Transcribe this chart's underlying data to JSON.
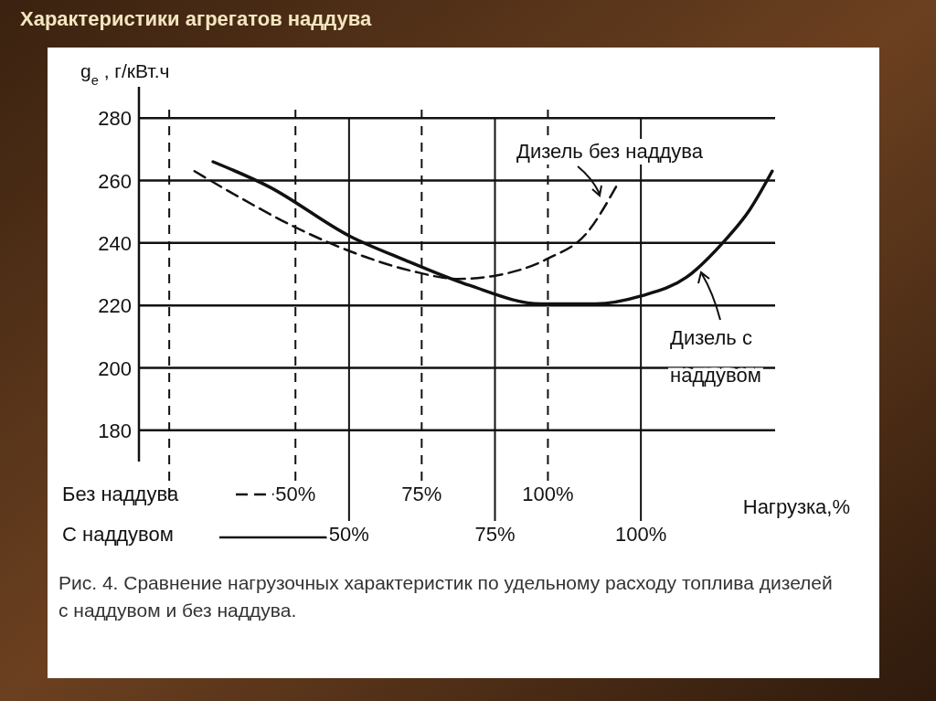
{
  "chart_data": {
    "type": "line",
    "title": "Характеристики агрегатов наддува",
    "ylabel": "g$_{e}$, г/кВт.ч",
    "xlabel": "С наддувом",
    "x2label": "Без наддува",
    "annotations": [
      "Нагрузка,%",
      "Рис. 4. Сравнение нагрузочных характеристик по удельному расходу топлива дизелей с наддувом и без наддува."
    ],
    "ylim": [
      170,
      290
    ],
    "yticks": [
      180,
      200,
      220,
      240,
      260,
      280
    ],
    "xlim": [
      14,
      123
    ],
    "xticks": [
      {
        "value": 50,
        "label": "50%"
      },
      {
        "value": 75,
        "label": "75%"
      },
      {
        "value": 100,
        "label": "100%"
      }
    ],
    "x2lim": [
      19,
      145
    ],
    "x2ticks": [
      {
        "value": 25,
        "label": null
      },
      {
        "value": 50,
        "label": "50%"
      },
      {
        "value": 75,
        "label": "75%"
      },
      {
        "value": 100,
        "label": "100%"
      }
    ],
    "grid": true,
    "legend": "bottom right",
    "marker": "none",
    "series": [
      {
        "name": "Дизель без наддува",
        "color": "#111111",
        "line_style": "dashed",
        "axis": "x2",
        "x": [
          30,
          38.5,
          50,
          62.2,
          73.1,
          82.2,
          89.5,
          100,
          107.6,
          113.5
        ],
        "values": [
          263,
          255,
          245,
          236.5,
          231,
          228.5,
          229.5,
          235,
          243,
          258
        ]
      },
      {
        "name": "Дизель с наддувом",
        "color": "#111111",
        "line_style": "solid",
        "x": [
          26.7,
          36.3,
          50.3,
          59.6,
          70.5,
          82.9,
          92.2,
          100,
          107.8,
          114,
          118.6,
          122.5
        ],
        "values": [
          266,
          258,
          242,
          234.5,
          226.5,
          220.5,
          220.5,
          223,
          229,
          240,
          250.5,
          263
        ]
      }
    ]
  }
}
